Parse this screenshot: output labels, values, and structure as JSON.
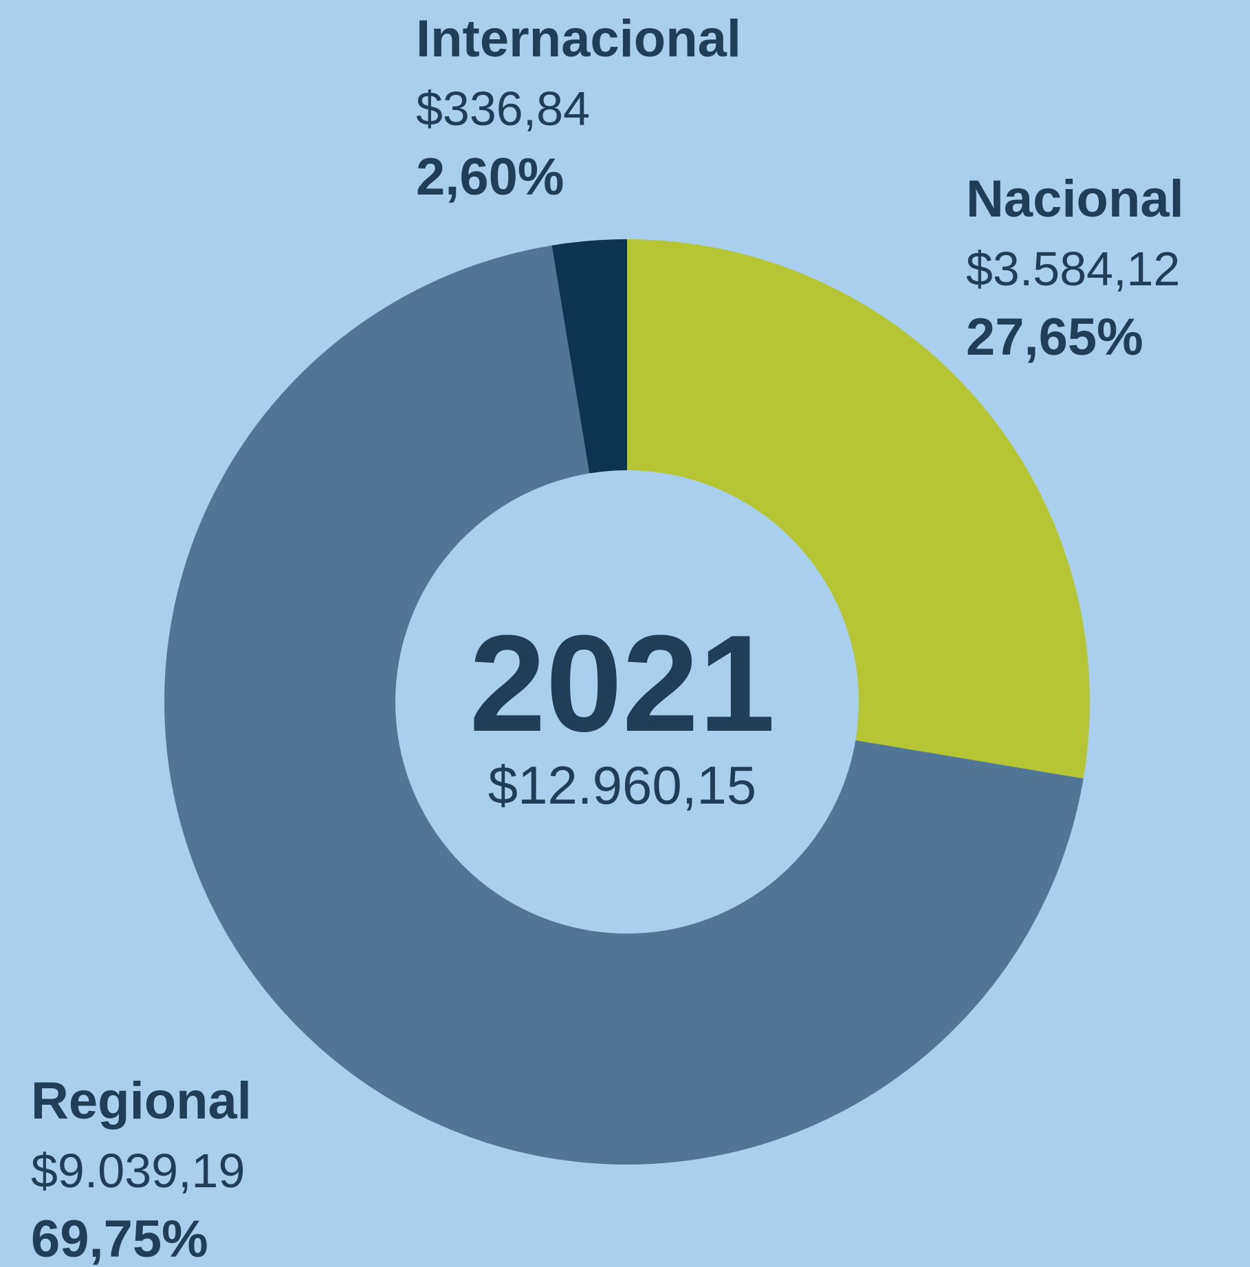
{
  "chart_data": {
    "type": "pie",
    "title": "2021",
    "total_label": "$12.960,15",
    "categories": [
      "Nacional",
      "Regional",
      "Internacional"
    ],
    "values": [
      27.65,
      69.75,
      2.6
    ],
    "value_labels": [
      "27,65%",
      "69,75%",
      "2,60%"
    ],
    "amount_labels": [
      "$3.584,12",
      "$9.039,19",
      "$336,84"
    ],
    "colors": [
      "#b5c534",
      "#517596",
      "#0b3452"
    ],
    "donut": true
  }
}
